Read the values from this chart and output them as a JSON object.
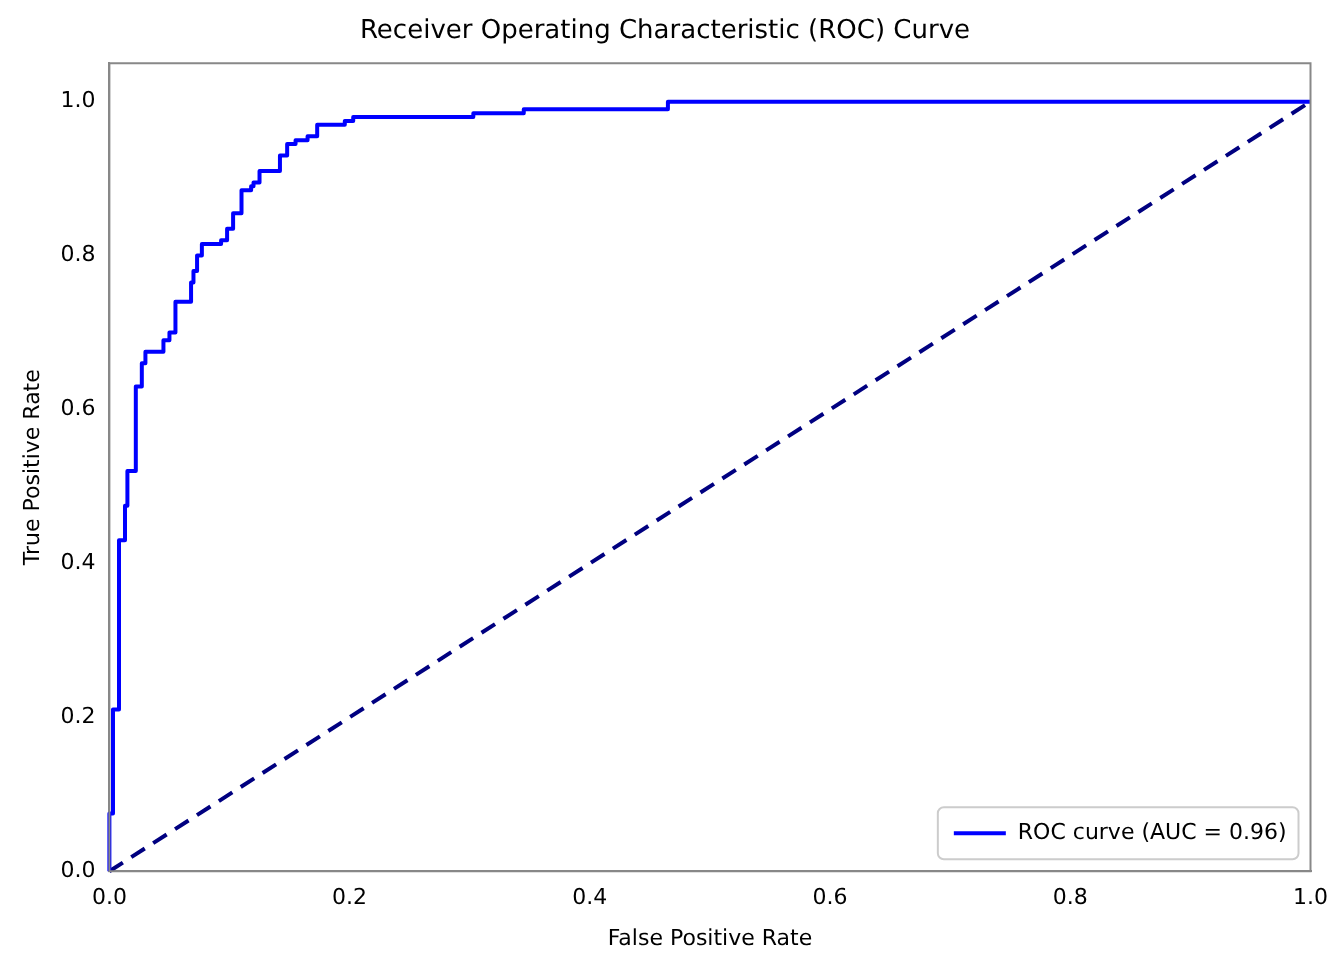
{
  "chart_data": {
    "type": "step",
    "title": "Receiver Operating Characteristic (ROC) Curve",
    "xlabel": "False Positive Rate",
    "ylabel": "True Positive Rate",
    "xlim": [
      0,
      1
    ],
    "ylim": [
      0,
      1.05
    ],
    "xticks": [
      {
        "value": 0,
        "label": "0.0"
      },
      {
        "value": 0.2,
        "label": "0.2"
      },
      {
        "value": 0.4,
        "label": "0.4"
      },
      {
        "value": 0.6,
        "label": "0.6"
      },
      {
        "value": 0.8,
        "label": "0.8"
      },
      {
        "value": 1,
        "label": "1.0"
      }
    ],
    "yticks": [
      {
        "value": 0,
        "label": "0.0"
      },
      {
        "value": 0.2,
        "label": "0.2"
      },
      {
        "value": 0.4,
        "label": "0.4"
      },
      {
        "value": 0.6,
        "label": "0.6"
      },
      {
        "value": 0.8,
        "label": "0.8"
      },
      {
        "value": 1,
        "label": "1.0"
      }
    ],
    "grid": false,
    "legend": "bottom right",
    "series": [
      {
        "name": "ROC curve (AUC = 0.96)",
        "type": "step",
        "color": "#0000ff",
        "line_style": "solid",
        "x": [
          0,
          0,
          0.003,
          0.008,
          0.013,
          0.015,
          0.022,
          0.027,
          0.03,
          0.045,
          0.05,
          0.055,
          0.068,
          0.07,
          0.073,
          0.077,
          0.093,
          0.098,
          0.103,
          0.11,
          0.118,
          0.12,
          0.125,
          0.142,
          0.148,
          0.155,
          0.165,
          0.173,
          0.196,
          0.203,
          0.303,
          0.345,
          0.465,
          1
        ],
        "values": [
          0,
          0.075,
          0.21,
          0.43,
          0.475,
          0.52,
          0.63,
          0.66,
          0.675,
          0.69,
          0.7,
          0.74,
          0.765,
          0.78,
          0.8,
          0.815,
          0.82,
          0.835,
          0.855,
          0.885,
          0.89,
          0.895,
          0.91,
          0.93,
          0.945,
          0.95,
          0.955,
          0.97,
          0.975,
          0.98,
          0.985,
          0.99,
          1,
          1
        ]
      },
      {
        "type": "line",
        "color": "#000080",
        "line_style": "dashed",
        "x": [
          0,
          1
        ],
        "values": [
          0,
          1
        ]
      }
    ]
  }
}
